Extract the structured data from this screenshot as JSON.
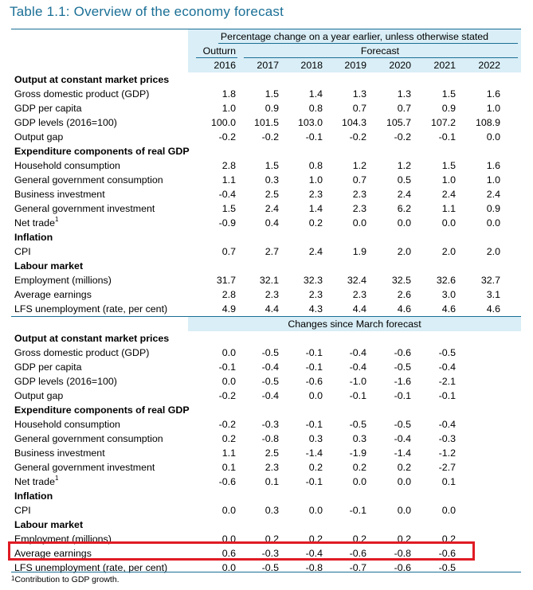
{
  "title": "Table 1.1: Overview of the economy forecast",
  "header": {
    "note": "Percentage change on a year earlier, unless otherwise stated",
    "outturn_label": "Outturn",
    "forecast_label": "Forecast",
    "years": [
      "2016",
      "2017",
      "2018",
      "2019",
      "2020",
      "2021",
      "2022"
    ]
  },
  "section1": {
    "rows": [
      {
        "label": "Output at constant market prices",
        "heading": true
      },
      {
        "label": "Gross domestic product (GDP)",
        "values": [
          "1.8",
          "1.5",
          "1.4",
          "1.3",
          "1.3",
          "1.5",
          "1.6"
        ]
      },
      {
        "label": "GDP per capita",
        "values": [
          "1.0",
          "0.9",
          "0.8",
          "0.7",
          "0.7",
          "0.9",
          "1.0"
        ]
      },
      {
        "label": "GDP levels (2016=100)",
        "values": [
          "100.0",
          "101.5",
          "103.0",
          "104.3",
          "105.7",
          "107.2",
          "108.9"
        ]
      },
      {
        "label": "Output gap",
        "values": [
          "-0.2",
          "-0.2",
          "-0.1",
          "-0.2",
          "-0.2",
          "-0.1",
          "0.0"
        ]
      },
      {
        "label": "Expenditure components of real GDP",
        "heading": true
      },
      {
        "label": "Household consumption",
        "values": [
          "2.8",
          "1.5",
          "0.8",
          "1.2",
          "1.2",
          "1.5",
          "1.6"
        ]
      },
      {
        "label": "General government consumption",
        "values": [
          "1.1",
          "0.3",
          "1.0",
          "0.7",
          "0.5",
          "1.0",
          "1.0"
        ]
      },
      {
        "label": "Business investment",
        "values": [
          "-0.4",
          "2.5",
          "2.3",
          "2.3",
          "2.4",
          "2.4",
          "2.4"
        ]
      },
      {
        "label": "General government investment",
        "values": [
          "1.5",
          "2.4",
          "1.4",
          "2.3",
          "6.2",
          "1.1",
          "0.9"
        ]
      },
      {
        "label": "Net trade",
        "sup": "1",
        "values": [
          "-0.9",
          "0.4",
          "0.2",
          "0.0",
          "0.0",
          "0.0",
          "0.0"
        ]
      },
      {
        "label": "Inflation",
        "heading": true
      },
      {
        "label": "CPI",
        "values": [
          "0.7",
          "2.7",
          "2.4",
          "1.9",
          "2.0",
          "2.0",
          "2.0"
        ]
      },
      {
        "label": "Labour market",
        "heading": true
      },
      {
        "label": "Employment (millions)",
        "values": [
          "31.7",
          "32.1",
          "32.3",
          "32.4",
          "32.5",
          "32.6",
          "32.7"
        ]
      },
      {
        "label": "Average earnings",
        "values": [
          "2.8",
          "2.3",
          "2.3",
          "2.3",
          "2.6",
          "3.0",
          "3.1"
        ]
      },
      {
        "label": "LFS unemployment (rate, per cent)",
        "values": [
          "4.9",
          "4.4",
          "4.3",
          "4.4",
          "4.6",
          "4.6",
          "4.6"
        ]
      }
    ]
  },
  "section2": {
    "title": "Changes since March forecast",
    "rows": [
      {
        "label": "Output at constant market prices",
        "heading": true
      },
      {
        "label": "Gross domestic product (GDP)",
        "values": [
          "0.0",
          "-0.5",
          "-0.1",
          "-0.4",
          "-0.6",
          "-0.5"
        ]
      },
      {
        "label": "GDP per capita",
        "values": [
          "-0.1",
          "-0.4",
          "-0.1",
          "-0.4",
          "-0.5",
          "-0.4"
        ]
      },
      {
        "label": "GDP levels (2016=100)",
        "values": [
          "0.0",
          "-0.5",
          "-0.6",
          "-1.0",
          "-1.6",
          "-2.1"
        ]
      },
      {
        "label": "Output gap",
        "values": [
          "-0.2",
          "-0.4",
          "0.0",
          "-0.1",
          "-0.1",
          "-0.1"
        ]
      },
      {
        "label": "Expenditure components of real GDP",
        "heading": true
      },
      {
        "label": "Household consumption",
        "values": [
          "-0.2",
          "-0.3",
          "-0.1",
          "-0.5",
          "-0.5",
          "-0.4"
        ]
      },
      {
        "label": "General government consumption",
        "values": [
          "0.2",
          "-0.8",
          "0.3",
          "0.3",
          "-0.4",
          "-0.3"
        ]
      },
      {
        "label": "Business investment",
        "values": [
          "1.1",
          "2.5",
          "-1.4",
          "-1.9",
          "-1.4",
          "-1.2"
        ]
      },
      {
        "label": "General government investment",
        "values": [
          "0.1",
          "2.3",
          "0.2",
          "0.2",
          "0.2",
          "-2.7"
        ]
      },
      {
        "label": "Net trade",
        "sup": "1",
        "values": [
          "-0.6",
          "0.1",
          "-0.1",
          "0.0",
          "0.0",
          "0.1"
        ]
      },
      {
        "label": "Inflation",
        "heading": true
      },
      {
        "label": "CPI",
        "values": [
          "0.0",
          "0.3",
          "0.0",
          "-0.1",
          "0.0",
          "0.0"
        ]
      },
      {
        "label": "Labour market",
        "heading": true
      },
      {
        "label": "Employment (millions)",
        "values": [
          "0.0",
          "0.2",
          "0.2",
          "0.2",
          "0.2",
          "0.2"
        ]
      },
      {
        "label": "Average earnings",
        "values": [
          "0.6",
          "-0.3",
          "-0.4",
          "-0.6",
          "-0.8",
          "-0.6"
        ],
        "highlighted": true
      },
      {
        "label": "LFS unemployment (rate, per cent)",
        "values": [
          "0.0",
          "-0.5",
          "-0.8",
          "-0.7",
          "-0.6",
          "-0.5"
        ]
      }
    ]
  },
  "footnote": {
    "sup": "1",
    "text": "Contribution to GDP growth."
  },
  "colors": {
    "accent": "#1a6f96",
    "shade": "#d9eef6",
    "highlight": "#e01b24"
  }
}
